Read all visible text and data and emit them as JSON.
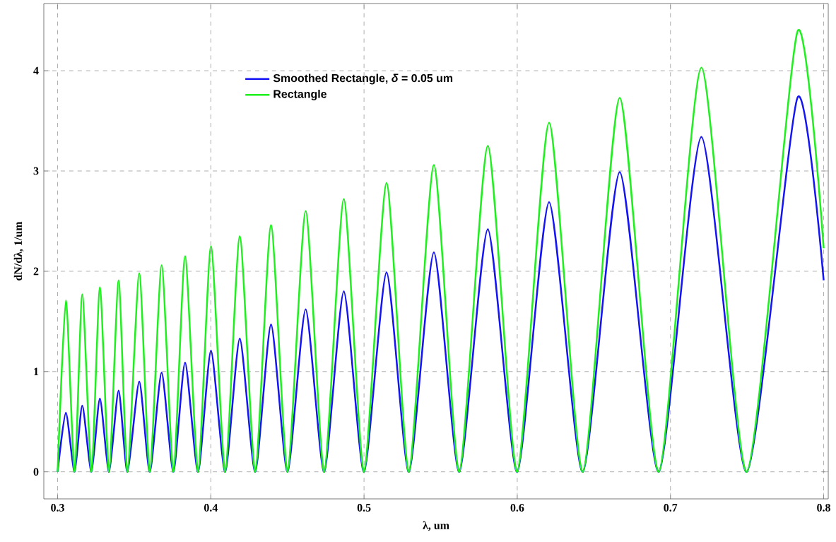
{
  "chart_data": {
    "type": "line",
    "xlabel": "λ, um",
    "ylabel": "dN/dλ, 1/um",
    "x": [
      0.3,
      0.3054,
      0.3111,
      0.3161,
      0.3221,
      0.3276,
      0.3336,
      0.3398,
      0.3456,
      0.3533,
      0.3602,
      0.3679,
      0.3756,
      0.3832,
      0.3917,
      0.4001,
      0.4094,
      0.4189,
      0.429,
      0.4393,
      0.4501,
      0.4619,
      0.474,
      0.4868,
      0.5,
      0.5147,
      0.5293,
      0.5456,
      0.5622,
      0.5808,
      0.6,
      0.6208,
      0.6428,
      0.6669,
      0.6924,
      0.7202,
      0.7498,
      0.7829,
      0.8
    ],
    "series": [
      {
        "name": "Smoothed Rectangle, *δ* = 0.05 um",
        "color": "#1414f5",
        "values": [
          0,
          0.59,
          0,
          0.66,
          0,
          0.73,
          0,
          0.81,
          0,
          0.9,
          0,
          0.99,
          0,
          1.09,
          0,
          1.21,
          0,
          1.33,
          0,
          1.47,
          0,
          1.62,
          0,
          1.8,
          0,
          1.99,
          0,
          2.19,
          0,
          2.42,
          0,
          2.69,
          0,
          2.99,
          0,
          3.34,
          0,
          3.73,
          1.91
        ]
      },
      {
        "name": "Rectangle",
        "color": "#1ef01e",
        "values": [
          0,
          1.71,
          0,
          1.77,
          0,
          1.84,
          0,
          1.91,
          0,
          1.98,
          0,
          2.06,
          0,
          2.15,
          0,
          2.25,
          0,
          2.35,
          0,
          2.46,
          0,
          2.6,
          0,
          2.72,
          0,
          2.88,
          0,
          3.06,
          0,
          3.25,
          0,
          3.48,
          0,
          3.73,
          0,
          4.03,
          0,
          4.39,
          2.23
        ]
      }
    ],
    "xlim": [
      0.291,
      0.803
    ],
    "ylim": [
      -0.27,
      4.67
    ],
    "xticks": [
      0.3,
      0.4,
      0.5,
      0.6,
      0.7,
      0.8
    ],
    "yticks": [
      0,
      1,
      2,
      3,
      4
    ],
    "grid": true,
    "legend": "top",
    "line_style": "solid",
    "marker": "none"
  }
}
